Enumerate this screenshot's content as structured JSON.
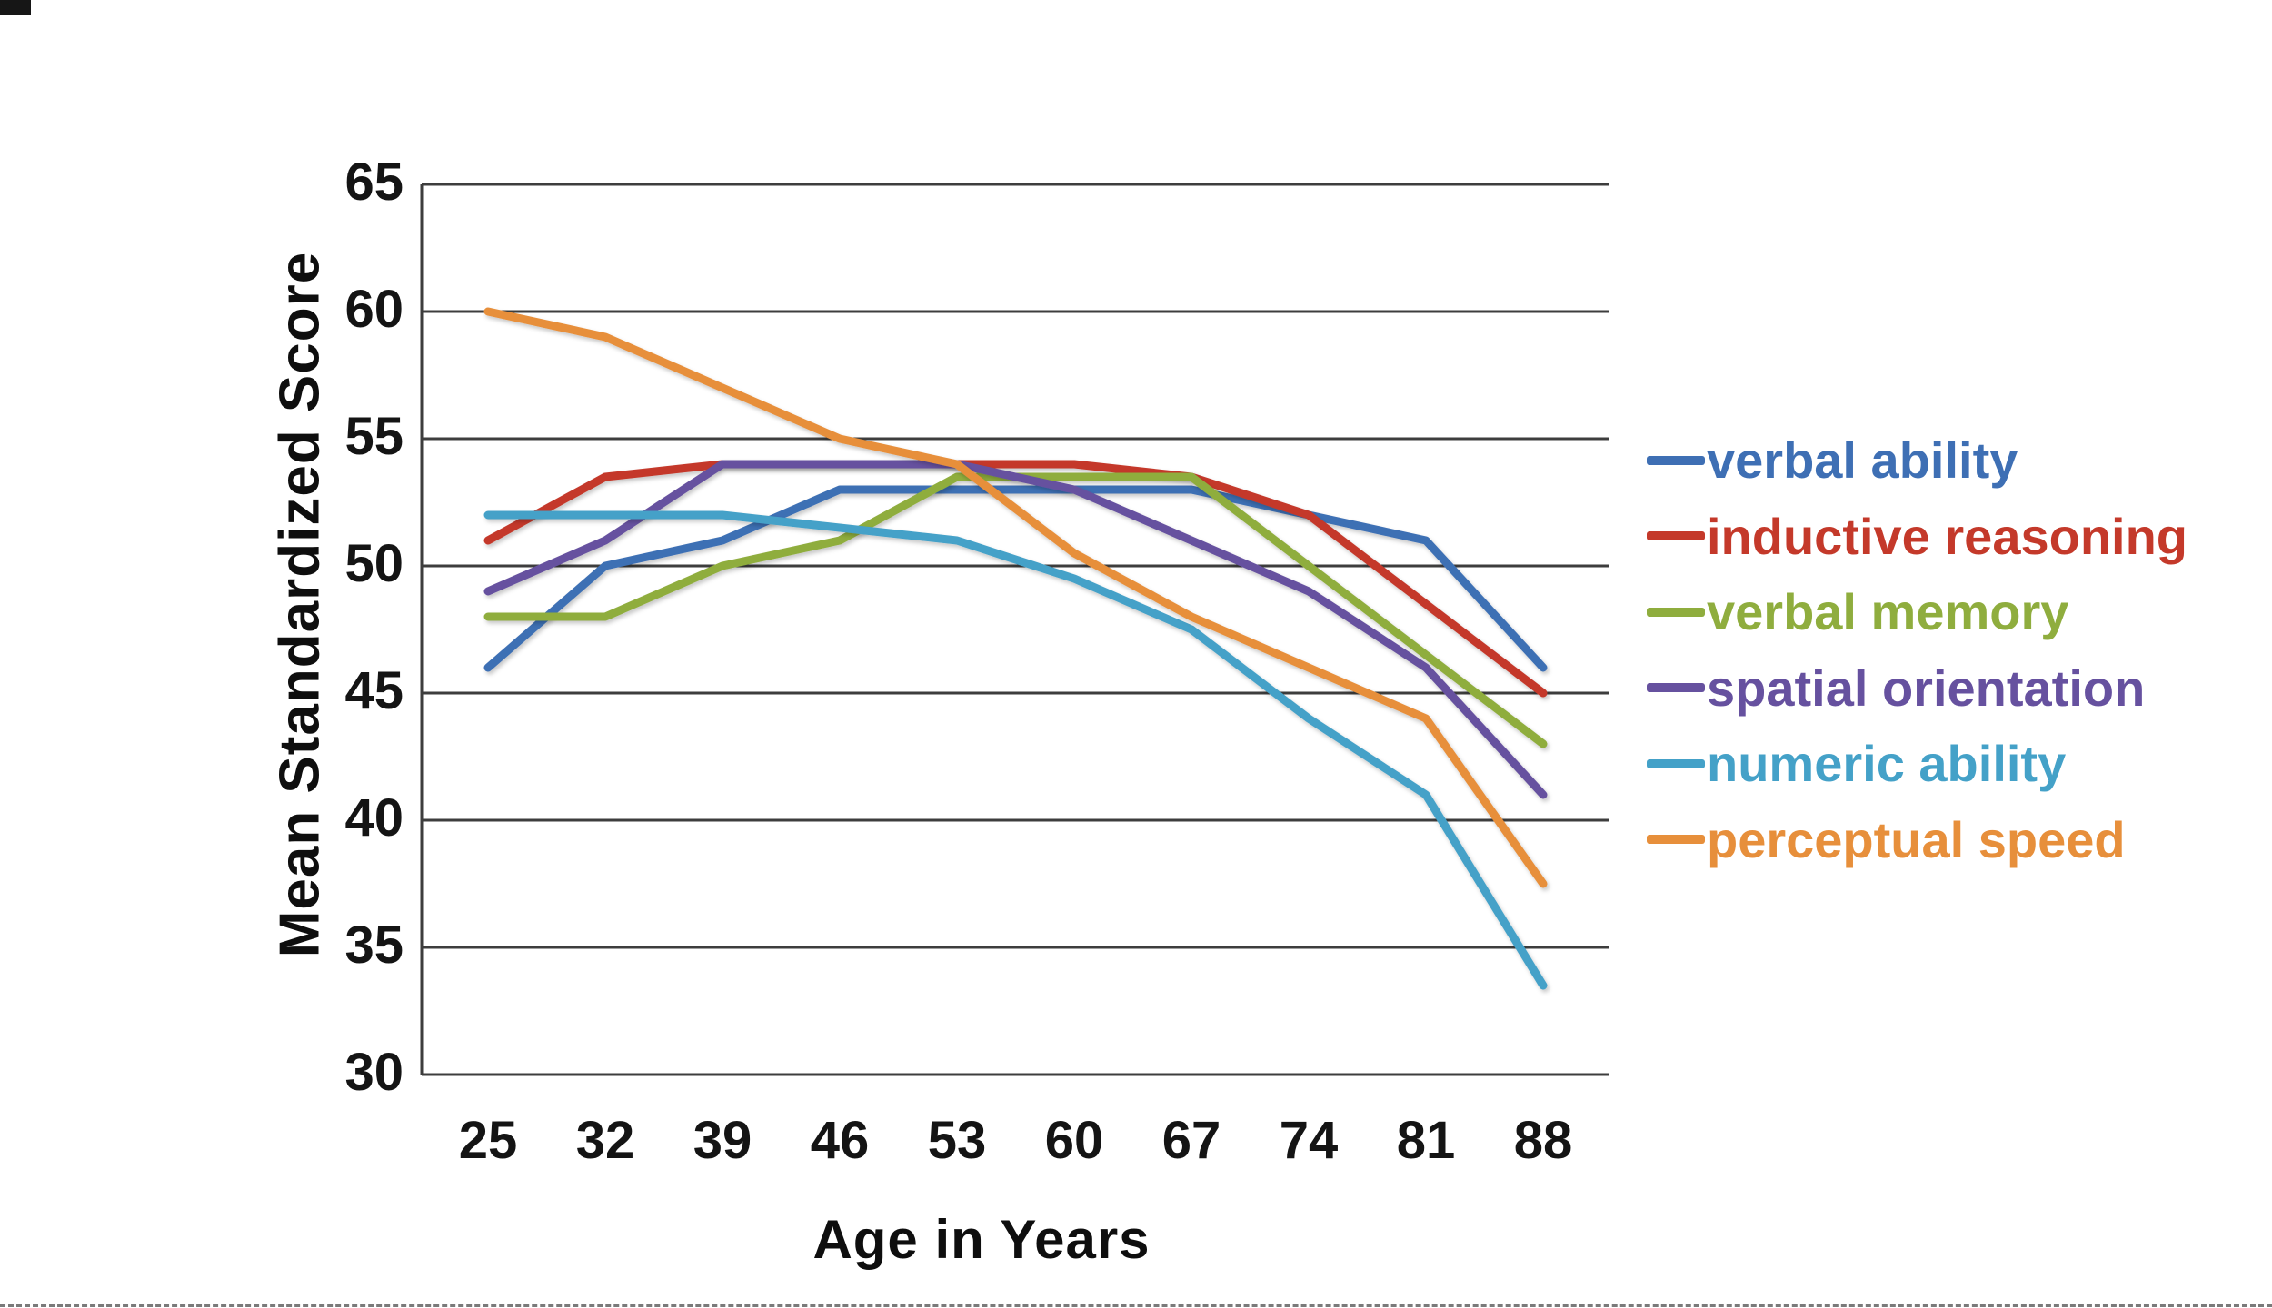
{
  "figure": {
    "background": "#ffffff",
    "grid_color": "#3d3d3d",
    "tick_label_color": "#141414"
  },
  "chart_data": {
    "type": "line",
    "title": "",
    "xlabel": "Age in Years",
    "ylabel": "Mean Standardized Score",
    "categories": [
      25,
      32,
      39,
      46,
      53,
      60,
      67,
      74,
      81,
      88
    ],
    "x_tick_labels": [
      "25",
      "32",
      "39",
      "46",
      "53",
      "60",
      "67",
      "74",
      "81",
      "88"
    ],
    "y_tick_labels": [
      "65",
      "60",
      "55",
      "50",
      "45",
      "40",
      "35",
      "30"
    ],
    "y_ticks": [
      65,
      60,
      55,
      50,
      45,
      40,
      35,
      30
    ],
    "ylim": [
      30,
      65
    ],
    "grid": "horizontal",
    "legend_position": "right",
    "series": [
      {
        "name": "verbal ability",
        "color": "#3E6FB4",
        "values": [
          46,
          50,
          51,
          53,
          53,
          53,
          53,
          52,
          51,
          46
        ]
      },
      {
        "name": "inductive reasoning",
        "color": "#C4392A",
        "values": [
          51,
          53.5,
          54,
          54,
          54,
          54,
          53.5,
          52,
          48.5,
          45
        ]
      },
      {
        "name": "verbal memory",
        "color": "#8FAD3E",
        "values": [
          48,
          48,
          50,
          51,
          53.5,
          53.5,
          53.5,
          50,
          46.5,
          43
        ]
      },
      {
        "name": "spatial orientation",
        "color": "#66519F",
        "values": [
          49,
          51,
          54,
          54,
          54,
          53,
          51,
          49,
          46,
          41
        ]
      },
      {
        "name": "numeric ability",
        "color": "#44A1C8",
        "values": [
          52,
          52,
          52,
          51.5,
          51,
          49.5,
          47.5,
          44,
          41,
          33.5
        ]
      },
      {
        "name": "perceptual speed",
        "color": "#E78F3B",
        "values": [
          60,
          59,
          57,
          55,
          54,
          50.5,
          48,
          46,
          44,
          37.5
        ]
      }
    ]
  }
}
